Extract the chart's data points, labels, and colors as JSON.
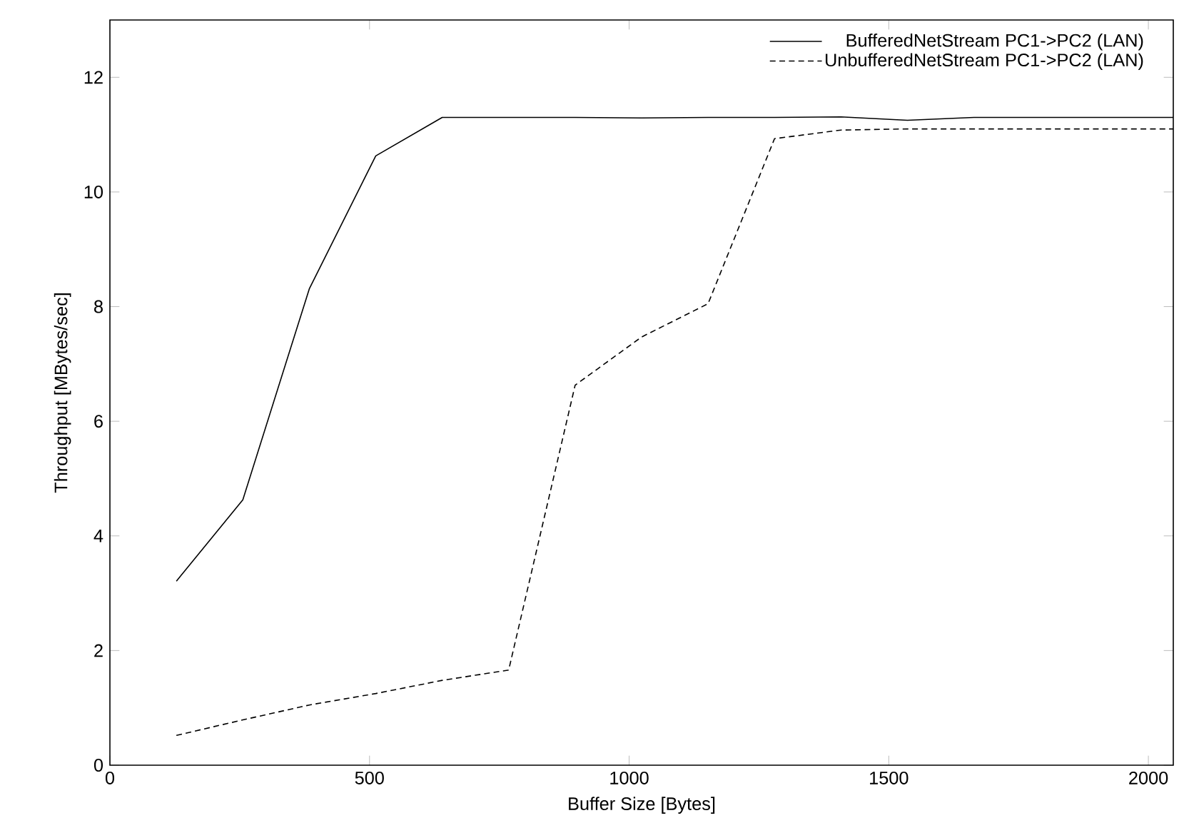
{
  "chart_data": {
    "type": "line",
    "xlabel": "Buffer Size [Bytes]",
    "ylabel": "Throughput [MBytes/sec]",
    "x": [
      128,
      256,
      384,
      512,
      640,
      768,
      896,
      1024,
      1152,
      1280,
      1408,
      1536,
      1664,
      1792,
      1920,
      2048
    ],
    "series": [
      {
        "name": "BufferedNetStream PC1->PC2 (LAN)",
        "color": "#000000",
        "line_style": "solid",
        "values": [
          3.21,
          4.63,
          8.31,
          10.63,
          11.3,
          11.3,
          11.3,
          11.29,
          11.3,
          11.3,
          11.31,
          11.25,
          11.3,
          11.3,
          11.3,
          11.3
        ]
      },
      {
        "name": "UnbufferedNetStream PC1->PC2 (LAN)",
        "color": "#000000",
        "line_style": "dashed",
        "values": [
          0.52,
          0.79,
          1.05,
          1.25,
          1.48,
          1.66,
          6.63,
          7.47,
          8.05,
          10.93,
          11.08,
          11.1,
          11.1,
          11.1,
          11.1,
          11.1
        ]
      }
    ],
    "xlim": [
      0,
      2048
    ],
    "ylim": [
      0,
      13
    ],
    "xticks": [
      0,
      500,
      1000,
      1500,
      2000
    ],
    "yticks": [
      0,
      2,
      4,
      6,
      8,
      10,
      12
    ],
    "legend": "top right",
    "marker": "none",
    "grid": false
  }
}
